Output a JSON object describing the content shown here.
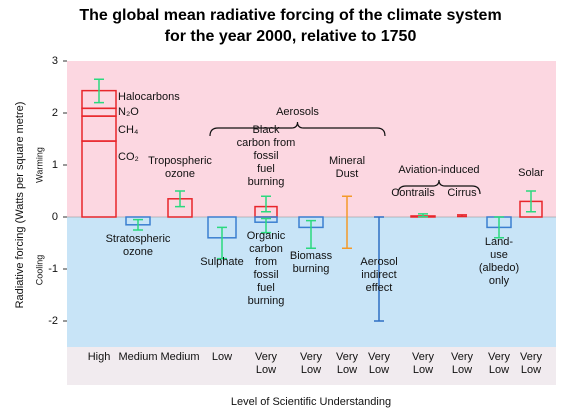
{
  "chart_data": {
    "type": "bar",
    "title": "The global mean radiative forcing of the climate system\nfor the year 2000, relative to 1750",
    "ylabel": "Radiative forcing  (Watts per square metre)",
    "xlabel": "Level  of Scientific Understanding",
    "region_labels": [
      "Warming",
      "Cooling"
    ],
    "warm_color": "#fcd7e1",
    "cool_color": "#c8e4f7",
    "ylim": [
      -2.5,
      3
    ],
    "yticks": [
      -2,
      -1,
      0,
      1,
      2,
      3
    ],
    "levels": [
      "High",
      "Medium",
      "Medium",
      "Low",
      "Very\nLow",
      "Very\nLow",
      "Very\nLow",
      "Very\nLow",
      "Very\nLow",
      "Very\nLow",
      "Very\nLow",
      "Very\nLow"
    ],
    "groups": [
      {
        "label": "Aerosols"
      },
      {
        "label": "Aviation-induced"
      }
    ],
    "forcings": [
      {
        "segments": [
          {
            "name": "CO₂",
            "value": 1.46
          },
          {
            "name": "CH₄",
            "value": 0.48
          },
          {
            "name": "N₂O",
            "value": 0.15
          },
          {
            "name": "Halocarbons",
            "value": 0.34
          }
        ],
        "range": [
          2.2,
          2.65
        ],
        "color": "#e8262b",
        "error_color": "#2bd97f"
      },
      {
        "label": "Stratospheric\nozone",
        "value": -0.15,
        "range": [
          -0.25,
          -0.05
        ],
        "color": "#3b7fd0",
        "error_color": "#2bd97f"
      },
      {
        "label": "Tropospheric\nozone",
        "value": 0.35,
        "range": [
          0.2,
          0.5
        ],
        "color": "#e8262b",
        "error_color": "#2bd97f"
      },
      {
        "label": "Sulphate",
        "value": -0.4,
        "range": [
          -0.8,
          -0.2
        ],
        "color": "#3b7fd0",
        "error_color": "#2bd97f"
      },
      {
        "label": "Black\ncarbon from\nfossil\nfuel\nburning",
        "value": 0.2,
        "range": [
          0.1,
          0.4
        ],
        "color": "#e8262b",
        "error_color": "#2bd97f"
      },
      {
        "label": "Organic\ncarbon\nfrom\nfossil\nfuel\nburning",
        "value": -0.1,
        "range": [
          -0.3,
          -0.03
        ],
        "color": "#3b7fd0",
        "error_color": "#2bd97f"
      },
      {
        "label": "Biomass\nburning",
        "value": -0.2,
        "range": [
          -0.6,
          -0.07
        ],
        "color": "#3b7fd0",
        "error_color": "#2bd97f"
      },
      {
        "label": "Mineral\nDust",
        "range": [
          -0.6,
          0.4
        ],
        "error_color": "#f39a2a"
      },
      {
        "label": "Aerosol\nindirect\neffect",
        "range": [
          -2,
          0
        ],
        "error_color": "#2f6fc4"
      },
      {
        "label": "Contrails",
        "value": 0.02,
        "range": [
          0.005,
          0.06
        ],
        "color": "#e8262b",
        "error_color": "#2bd97f"
      },
      {
        "label": "Cirrus",
        "range": [
          0.01,
          0.04
        ],
        "error_color": "#e8262b"
      },
      {
        "label": "Land-\nuse\n(albedo)\nonly",
        "value": -0.2,
        "range": [
          -0.4,
          0
        ],
        "color": "#3b7fd0",
        "error_color": "#2bd97f"
      },
      {
        "label": "Solar",
        "value": 0.3,
        "range": [
          0.1,
          0.5
        ],
        "color": "#e8262b",
        "error_color": "#2bd97f"
      }
    ]
  }
}
